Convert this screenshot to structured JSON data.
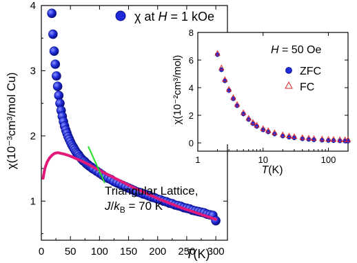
{
  "chart_data": [
    {
      "type": "scatter",
      "xlabel_italic": "T",
      "xlabel_rest": "(K)",
      "ylabel_text": "χ(10⁻³cm³/mol Cu)",
      "xlim": [
        0,
        320
      ],
      "ylim": [
        0.4,
        4
      ],
      "xticks": [
        0,
        50,
        100,
        150,
        200,
        250,
        300
      ],
      "yticks": [
        1,
        2,
        3,
        4
      ],
      "legend": {
        "symbol": "χ",
        "text_pre": "at ",
        "var": "H",
        "text_post": " = 1 kOe"
      },
      "series": [
        {
          "kind": "points",
          "color": "#1f2bd9",
          "x": [
            18,
            20,
            22,
            24,
            26,
            28,
            30,
            32,
            34,
            36,
            38,
            40,
            42,
            44,
            46,
            48,
            50,
            52,
            54,
            56,
            58,
            60,
            62,
            64,
            66,
            68,
            70,
            72,
            74,
            76,
            78,
            80,
            82,
            84,
            86,
            88,
            90,
            95,
            100,
            105,
            110,
            115,
            120,
            125,
            130,
            135,
            140,
            145,
            150,
            155,
            160,
            165,
            170,
            175,
            180,
            185,
            190,
            195,
            200,
            205,
            210,
            215,
            220,
            225,
            230,
            235,
            240,
            245,
            250,
            255,
            260,
            265,
            270,
            275,
            280,
            285,
            290,
            295,
            300
          ],
          "y": [
            3.88,
            3.56,
            3.3,
            3.1,
            2.92,
            2.76,
            2.62,
            2.5,
            2.39,
            2.3,
            2.22,
            2.15,
            2.09,
            2.04,
            1.99,
            1.95,
            1.91,
            1.87,
            1.84,
            1.81,
            1.78,
            1.75,
            1.73,
            1.71,
            1.68,
            1.66,
            1.64,
            1.62,
            1.61,
            1.59,
            1.57,
            1.56,
            1.54,
            1.53,
            1.52,
            1.5,
            1.49,
            1.46,
            1.43,
            1.4,
            1.37,
            1.35,
            1.33,
            1.3,
            1.28,
            1.26,
            1.24,
            1.22,
            1.2,
            1.18,
            1.16,
            1.14,
            1.13,
            1.11,
            1.1,
            1.08,
            1.06,
            1.05,
            1.03,
            1.02,
            1.0,
            0.99,
            0.97,
            0.96,
            0.94,
            0.93,
            0.92,
            0.9,
            0.89,
            0.88,
            0.86,
            0.85,
            0.84,
            0.83,
            0.82,
            0.8,
            0.79,
            0.78,
            0.7
          ]
        },
        {
          "kind": "line",
          "color": "#e0197a",
          "x": [
            3,
            6,
            10,
            14,
            18,
            22,
            26,
            30,
            35,
            40,
            50,
            60,
            70,
            80,
            90,
            100,
            120,
            140,
            160,
            180,
            200,
            220,
            240,
            260,
            280,
            300
          ],
          "y": [
            1.35,
            1.5,
            1.6,
            1.66,
            1.7,
            1.73,
            1.74,
            1.74,
            1.73,
            1.72,
            1.69,
            1.65,
            1.61,
            1.57,
            1.52,
            1.47,
            1.38,
            1.29,
            1.2,
            1.12,
            1.04,
            0.97,
            0.9,
            0.84,
            0.78,
            0.72
          ]
        }
      ],
      "annotation": {
        "line1": "Triangular Lattice,",
        "j": "J",
        "slash": "/",
        "k": "k",
        "sub": "B",
        "rest": " = 70 K",
        "arrow_color": "#22dd22"
      }
    },
    {
      "type": "scatter",
      "inset": true,
      "xscale": "log",
      "xlim": [
        1,
        200
      ],
      "ylim": [
        -0.6,
        8
      ],
      "xticks": [
        1,
        10,
        100
      ],
      "yticks": [
        0,
        2,
        4,
        6,
        8
      ],
      "xlabel_italic": "T",
      "xlabel_rest": "(K)",
      "ylabel_text": "χ(10⁻²cm³/mol)",
      "title_var": "H",
      "title_rest": " = 50 Oe",
      "series": [
        {
          "name": "ZFC",
          "marker": "circle",
          "color": "#1f2bd9",
          "x": [
            2,
            2.3,
            2.6,
            3,
            3.5,
            4,
            5,
            6,
            7,
            8,
            10,
            12,
            15,
            20,
            25,
            30,
            40,
            50,
            60,
            80,
            100,
            120,
            150,
            180,
            200
          ],
          "y": [
            6.4,
            5.3,
            4.5,
            3.8,
            3.2,
            2.7,
            2.1,
            1.7,
            1.4,
            1.2,
            0.95,
            0.8,
            0.65,
            0.5,
            0.42,
            0.37,
            0.3,
            0.26,
            0.23,
            0.2,
            0.18,
            0.17,
            0.15,
            0.14,
            0.13
          ]
        },
        {
          "name": "FC",
          "marker": "triangle",
          "color": "#e02020",
          "x": [
            2,
            2.3,
            2.6,
            3,
            3.5,
            4,
            5,
            6,
            7,
            8,
            10,
            12,
            15,
            20,
            25,
            30,
            40,
            50,
            60,
            80,
            100,
            120,
            150,
            180,
            200
          ],
          "y": [
            6.5,
            5.45,
            4.6,
            3.9,
            3.3,
            2.8,
            2.2,
            1.8,
            1.5,
            1.3,
            1.05,
            0.9,
            0.75,
            0.6,
            0.52,
            0.47,
            0.4,
            0.36,
            0.33,
            0.3,
            0.28,
            0.27,
            0.25,
            0.24,
            0.23
          ]
        }
      ]
    }
  ]
}
